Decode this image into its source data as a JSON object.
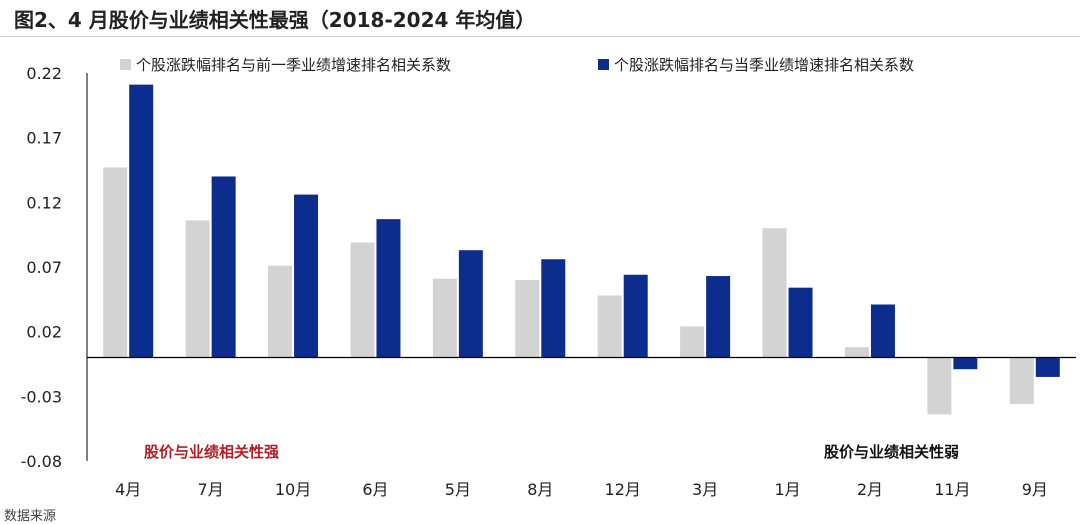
{
  "title": "图2、4 月股价与业绩相关性最强（2018-2024 年均值）",
  "source": "数据来源",
  "colors": {
    "series_prev": "#d3d3d3",
    "series_curr": "#0d2d8e",
    "annotation_strong": "#b11f24",
    "annotation_weak": "#111111",
    "axis": "#000000",
    "text": "#222222"
  },
  "chart_data": {
    "type": "bar",
    "categories": [
      "4月",
      "7月",
      "10月",
      "6月",
      "5月",
      "8月",
      "12月",
      "3月",
      "1月",
      "2月",
      "11月",
      "9月"
    ],
    "series": [
      {
        "name": "个股涨跌幅排名与前一季业绩增速排名相关系数",
        "values": [
          0.147,
          0.106,
          0.071,
          0.089,
          0.061,
          0.06,
          0.048,
          0.024,
          0.1,
          0.008,
          -0.044,
          -0.036
        ]
      },
      {
        "name": "个股涨跌幅排名与当季业绩增速排名相关系数",
        "values": [
          0.211,
          0.14,
          0.126,
          0.107,
          0.083,
          0.076,
          0.064,
          0.063,
          0.054,
          0.041,
          -0.009,
          -0.015
        ]
      }
    ],
    "yticks": [
      "0.22",
      "0.17",
      "0.12",
      "0.07",
      "0.02",
      "-0.03",
      "-0.08"
    ],
    "ylim": [
      -0.08,
      0.22
    ],
    "grid": false,
    "legend": "top",
    "annotations": [
      {
        "text": "股价与业绩相关性强",
        "position": "bottom-left"
      },
      {
        "text": "股价与业绩相关性弱",
        "position": "bottom-right"
      }
    ]
  }
}
